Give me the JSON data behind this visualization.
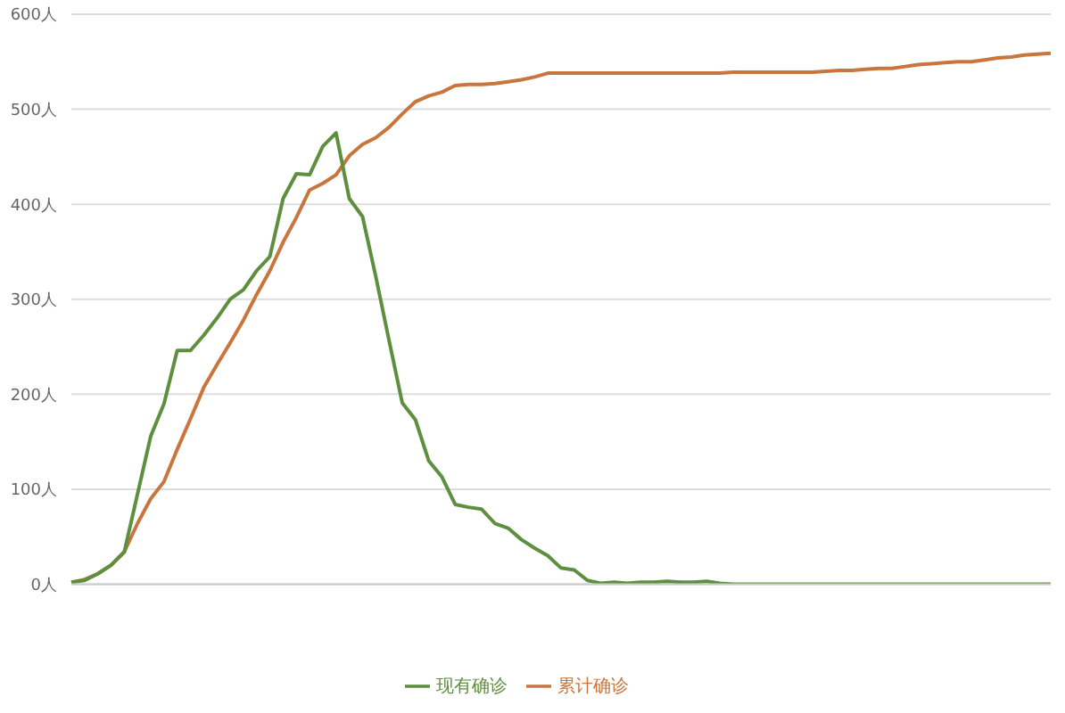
{
  "chart_data": {
    "type": "line",
    "categories": [
      null,
      null,
      null,
      null,
      null,
      null,
      null,
      null,
      null,
      null,
      null,
      null,
      null,
      null,
      null,
      null,
      null,
      null,
      null,
      null,
      null,
      null,
      null,
      null,
      null,
      null,
      null,
      null,
      null,
      null,
      null,
      null,
      null,
      null,
      null,
      null,
      null,
      null,
      null,
      null,
      null,
      null,
      null,
      null,
      null,
      null,
      null,
      null,
      null,
      null,
      null,
      null,
      null,
      null,
      null,
      null,
      null,
      null,
      null,
      null,
      null,
      null,
      null,
      null,
      null,
      null,
      null,
      null,
      null,
      null,
      null,
      null,
      null,
      null,
      null
    ],
    "series": [
      {
        "name": "累计确诊",
        "color": "#c8763e",
        "values": [
          2,
          5,
          11,
          20,
          34,
          64,
          90,
          108,
          142,
          174,
          207,
          231,
          254,
          278,
          305,
          330,
          360,
          386,
          415,
          422,
          431,
          451,
          463,
          470,
          481,
          495,
          508,
          514,
          518,
          525,
          526,
          526,
          527,
          529,
          531,
          534,
          538,
          538,
          538,
          538,
          538,
          538,
          538,
          538,
          538,
          538,
          538,
          538,
          538,
          538,
          539,
          539,
          539,
          539,
          539,
          539,
          539,
          540,
          541,
          541,
          542,
          543,
          543,
          545,
          547,
          548,
          549,
          550,
          550,
          552,
          554,
          555,
          557,
          558,
          559
        ]
      },
      {
        "name": "现有确诊",
        "color": "#5e8f3e",
        "values": [
          2,
          4,
          11,
          20,
          34,
          95,
          156,
          190,
          246,
          246,
          262,
          280,
          300,
          310,
          330,
          345,
          406,
          432,
          431,
          461,
          475,
          406,
          387,
          324,
          257,
          191,
          173,
          130,
          113,
          84,
          81,
          79,
          64,
          59,
          47,
          38,
          30,
          17,
          15,
          4,
          1,
          2,
          1,
          2,
          2,
          3,
          2,
          2,
          3,
          1,
          0,
          0,
          0,
          0,
          0,
          0,
          0,
          0,
          0,
          0,
          0,
          0,
          0,
          0,
          0,
          0,
          0,
          0,
          0,
          0,
          0,
          0,
          0,
          0,
          0
        ]
      }
    ],
    "ylim": [
      0,
      600
    ],
    "yticks": [
      {
        "value": 0,
        "label": "0人"
      },
      {
        "value": 100,
        "label": "100人"
      },
      {
        "value": 200,
        "label": "200人"
      },
      {
        "value": 300,
        "label": "300人"
      },
      {
        "value": 400,
        "label": "400人"
      },
      {
        "value": 500,
        "label": "500人"
      },
      {
        "value": 600,
        "label": "600人"
      }
    ],
    "grid": "y",
    "legend": "bottom",
    "marker": "none",
    "line_style": "solid"
  }
}
